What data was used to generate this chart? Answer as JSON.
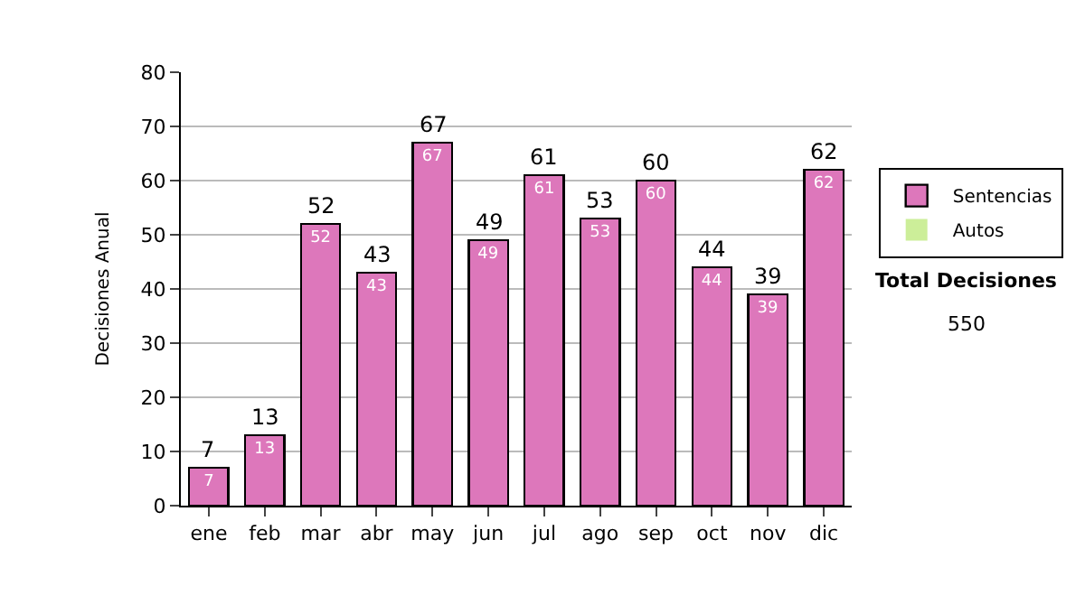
{
  "chart_data": {
    "type": "bar",
    "stacked": true,
    "ylabel": "Decisiones Anual",
    "categories": [
      "ene",
      "feb",
      "mar",
      "abr",
      "may",
      "jun",
      "jul",
      "ago",
      "sep",
      "oct",
      "nov",
      "dic"
    ],
    "series": [
      {
        "name": "Sentencias",
        "color": "#dd77bb",
        "values": [
          7,
          13,
          52,
          43,
          67,
          49,
          61,
          53,
          60,
          44,
          39,
          62
        ],
        "value_labels": [
          "7",
          "13",
          "52",
          "43",
          "67",
          "49",
          "61",
          "53",
          "60",
          "44",
          "39",
          "62"
        ]
      },
      {
        "name": "Autos",
        "color": "#ccee99",
        "values": [
          0,
          0,
          0,
          0,
          0,
          0,
          0,
          0,
          0,
          0,
          0,
          0
        ]
      }
    ],
    "totals": [
      "7",
      "13",
      "52",
      "43",
      "67",
      "49",
      "61",
      "53",
      "60",
      "44",
      "39",
      "62"
    ],
    "ylim": [
      0,
      80
    ],
    "yticks": [
      0,
      10,
      20,
      30,
      40,
      50,
      60,
      70,
      80
    ],
    "grid": "y",
    "legend": "right",
    "annotations": [
      "Total Decisiones",
      "550"
    ]
  }
}
